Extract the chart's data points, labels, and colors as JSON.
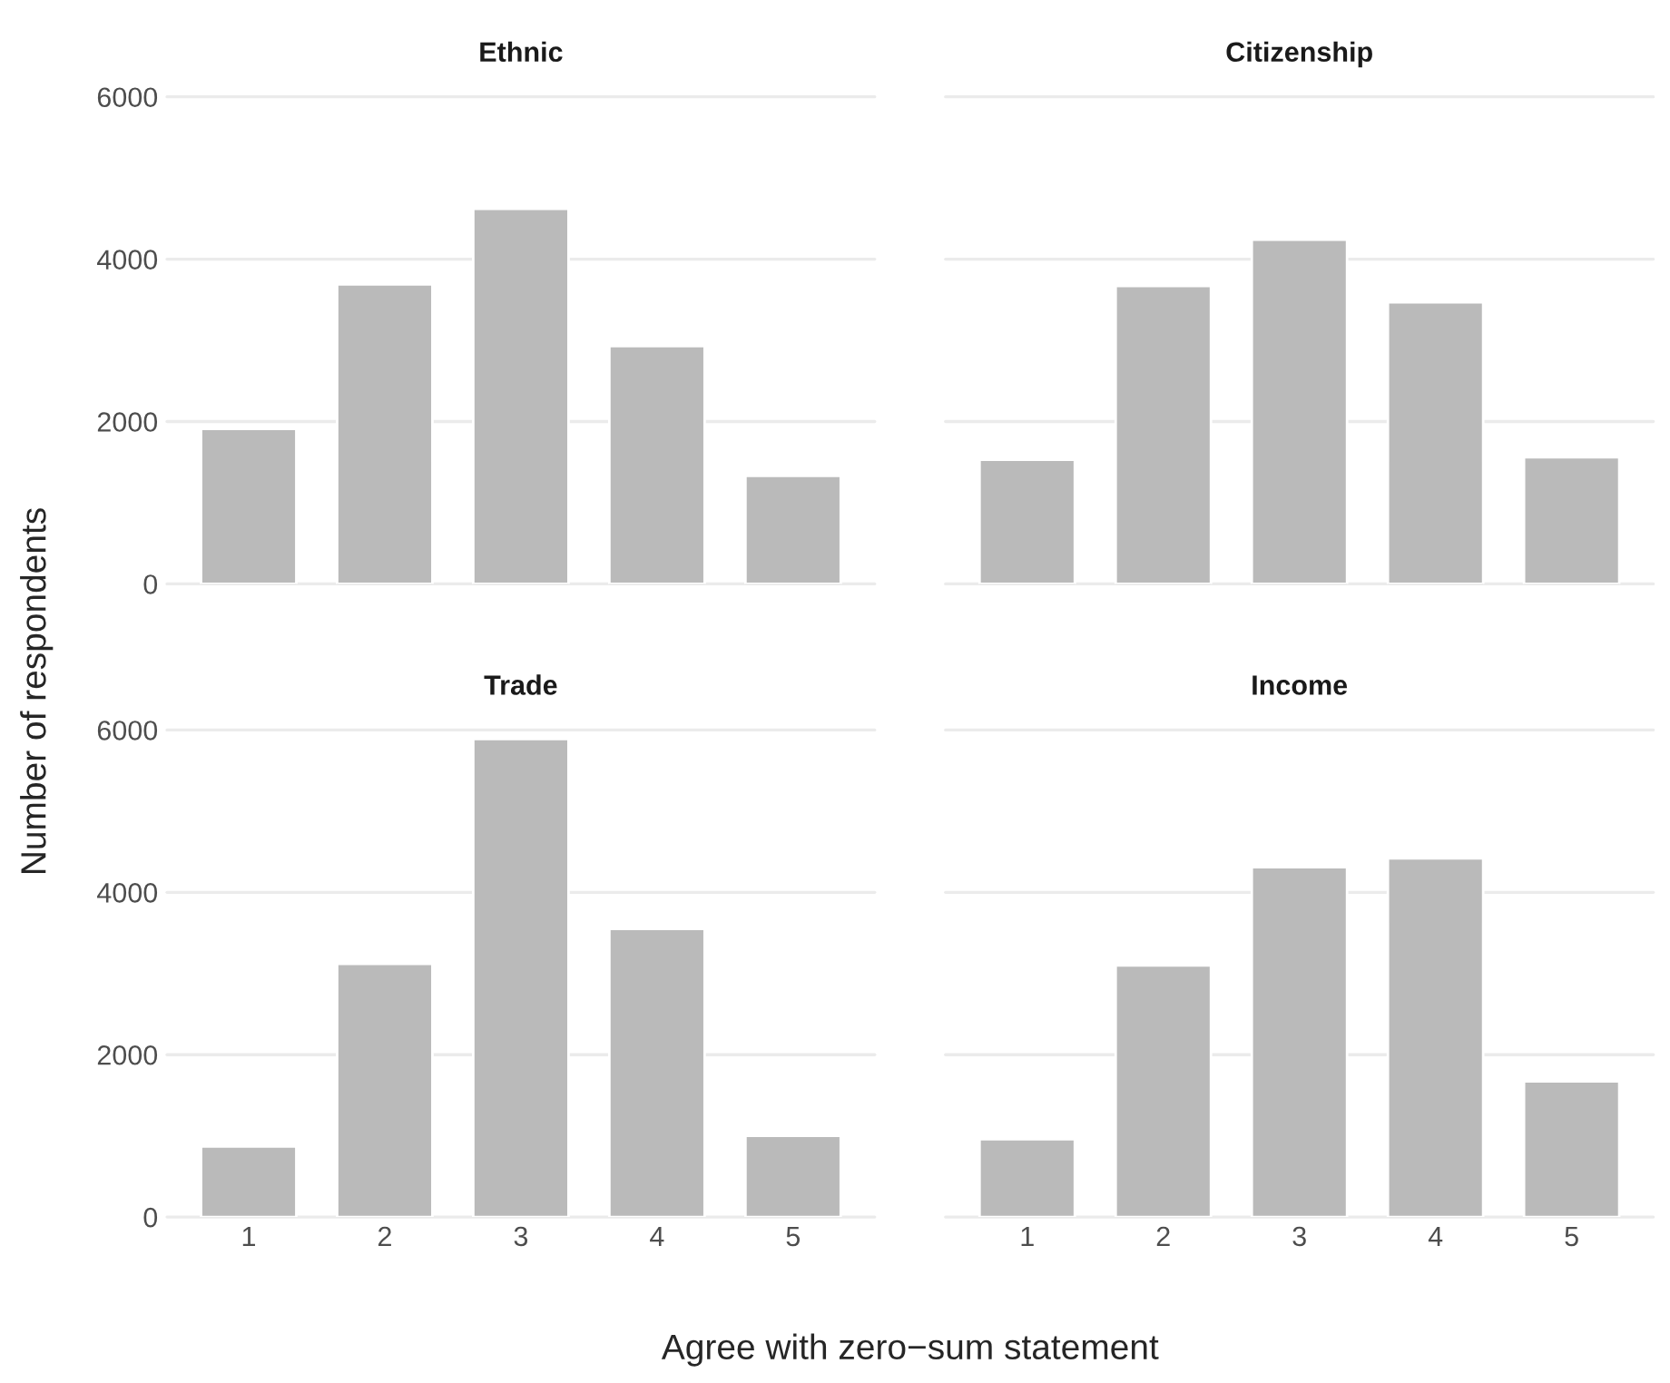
{
  "chart_data": [
    {
      "type": "bar",
      "title": "Ethnic",
      "ylabel": "Number of respondents",
      "categories": [
        "1",
        "2",
        "3",
        "4",
        "5"
      ],
      "values": [
        1910,
        3690,
        4620,
        2930,
        1330
      ],
      "color": "#bababa",
      "ylim": [
        0,
        6000
      ],
      "yticks": [
        0,
        2000,
        4000,
        6000
      ],
      "grid": "y",
      "tick_labels": "y"
    },
    {
      "type": "bar",
      "title": "Citizenship",
      "categories": [
        "1",
        "2",
        "3",
        "4",
        "5"
      ],
      "values": [
        1530,
        3670,
        4240,
        3470,
        1560
      ],
      "color": "#bababa",
      "ylim": [
        0,
        6000
      ],
      "yticks": [
        0,
        2000,
        4000,
        6000
      ],
      "grid": "y",
      "tick_labels": false
    },
    {
      "type": "bar",
      "title": "Trade",
      "xlabel": "Agree with zero−sum statement",
      "categories": [
        "1",
        "2",
        "3",
        "4",
        "5"
      ],
      "values": [
        870,
        3120,
        5890,
        3550,
        1000
      ],
      "color": "#bababa",
      "ylim": [
        0,
        6000
      ],
      "yticks": [
        0,
        2000,
        4000,
        6000
      ],
      "grid": "y"
    },
    {
      "type": "bar",
      "title": "Income",
      "categories": [
        "1",
        "2",
        "3",
        "4",
        "5"
      ],
      "values": [
        960,
        3100,
        4310,
        4420,
        1670
      ],
      "color": "#bababa",
      "ylim": [
        0,
        6000
      ],
      "yticks": [
        0,
        2000,
        4000,
        6000
      ],
      "grid": "y",
      "tick_labels": "x"
    }
  ]
}
